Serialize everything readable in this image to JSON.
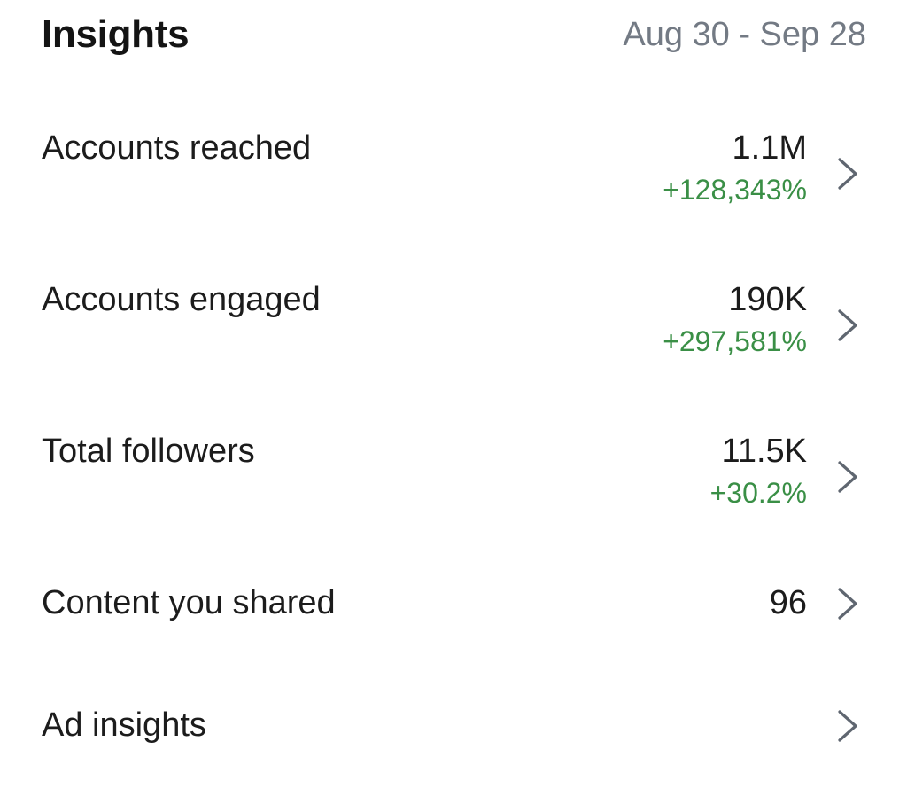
{
  "header": {
    "title": "Insights",
    "date_range": "Aug 30 - Sep 28"
  },
  "rows": [
    {
      "label": "Accounts reached",
      "value": "1.1M",
      "change": "+128,343%",
      "icon": "chevron-right-icon"
    },
    {
      "label": "Accounts engaged",
      "value": "190K",
      "change": "+297,581%",
      "icon": "chevron-right-icon"
    },
    {
      "label": "Total followers",
      "value": "11.5K",
      "change": "+30.2%",
      "icon": "chevron-right-icon"
    },
    {
      "label": "Content you shared",
      "value": "96",
      "change": "",
      "icon": "chevron-right-icon"
    },
    {
      "label": "Ad insights",
      "value": "",
      "change": "",
      "icon": "chevron-right-icon"
    }
  ],
  "colors": {
    "positive_change": "#3a8f46",
    "secondary_text": "#737a84",
    "primary_text": "#1c1c1c",
    "chevron": "#5f6670"
  }
}
